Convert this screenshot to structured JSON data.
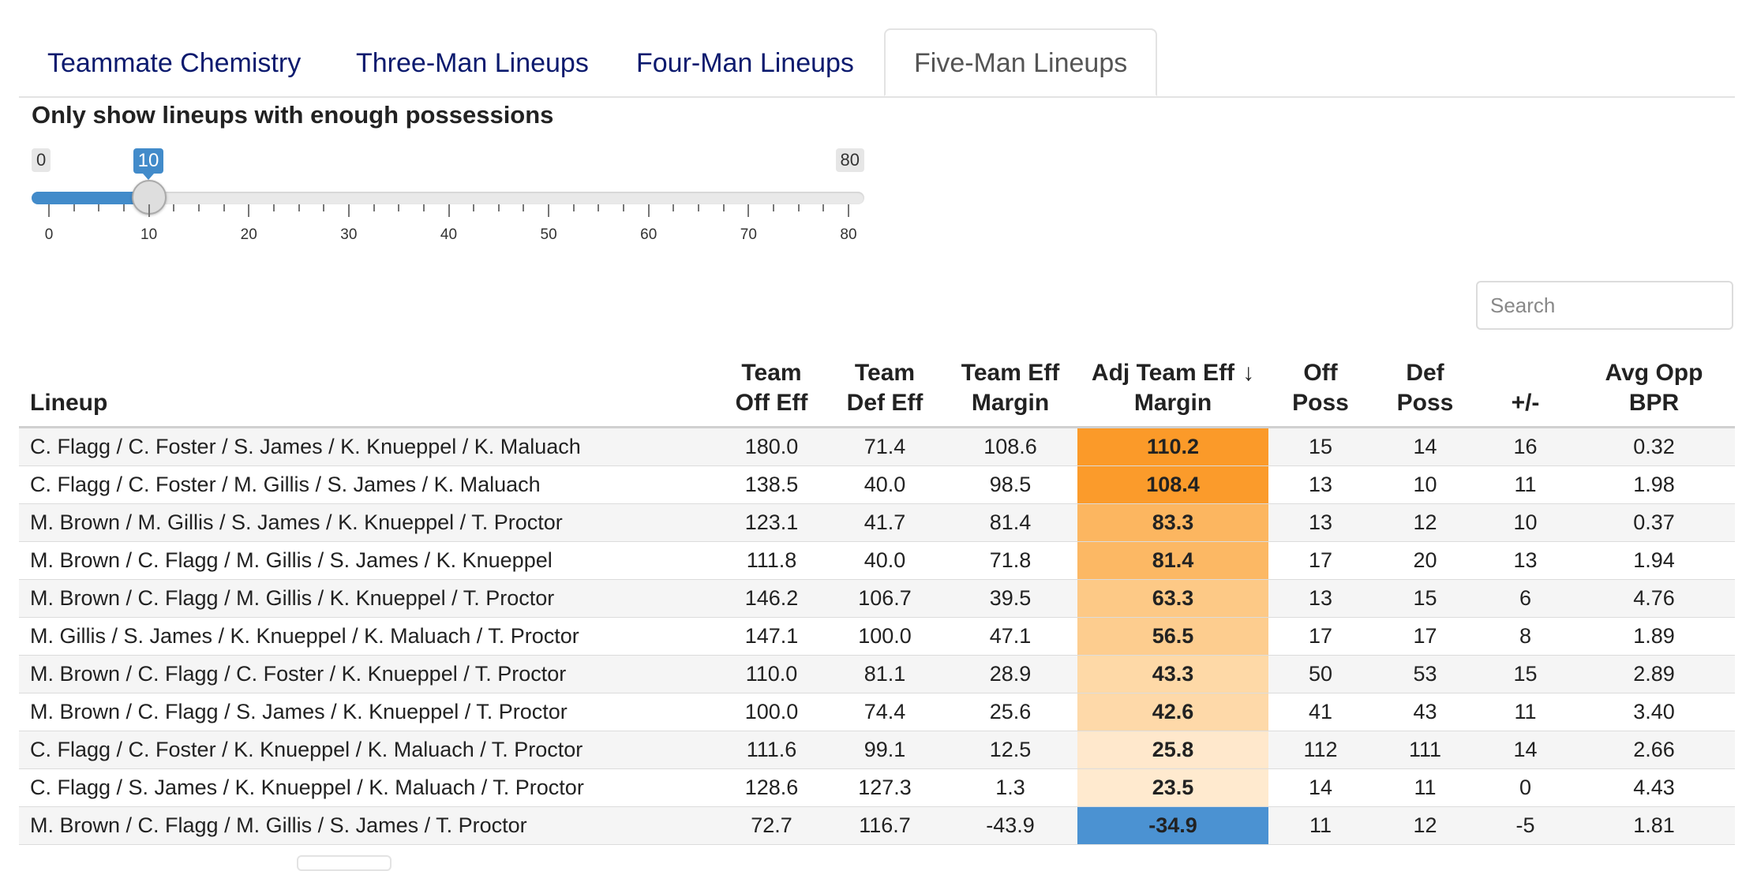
{
  "tabs": [
    {
      "label": "Teammate Chemistry",
      "active": false
    },
    {
      "label": "Three-Man Lineups",
      "active": false
    },
    {
      "label": "Four-Man Lineups",
      "active": false
    },
    {
      "label": "Five-Man Lineups",
      "active": true
    }
  ],
  "slider": {
    "label": "Only show lineups with enough possessions",
    "min": "0",
    "max": "80",
    "value": "10",
    "ticks": [
      "0",
      "10",
      "20",
      "30",
      "40",
      "50",
      "60",
      "70",
      "80"
    ]
  },
  "search": {
    "placeholder": "Search"
  },
  "table": {
    "headers": {
      "lineup": "Lineup",
      "off_eff": [
        "Team",
        "Off Eff"
      ],
      "def_eff": [
        "Team",
        "Def Eff"
      ],
      "margin": [
        "Team Eff",
        "Margin"
      ],
      "adj_margin": [
        "Adj Team Eff",
        "Margin"
      ],
      "sort_icon": "↓",
      "off_poss": [
        "Off",
        "Poss"
      ],
      "def_poss": [
        "Def",
        "Poss"
      ],
      "plus_minus": "+/-",
      "avg_opp": [
        "Avg Opp",
        "BPR"
      ]
    },
    "rows": [
      {
        "lineup": "C. Flagg / C. Foster / S. James / K. Knueppel / K. Maluach",
        "off_eff": "180.0",
        "def_eff": "71.4",
        "margin": "108.6",
        "adj_margin": "110.2",
        "off_poss": "15",
        "def_poss": "14",
        "plus_minus": "16",
        "avg_opp": "0.32",
        "adj_color": "#fb9a29"
      },
      {
        "lineup": "C. Flagg / C. Foster / M. Gillis / S. James / K. Maluach",
        "off_eff": "138.5",
        "def_eff": "40.0",
        "margin": "98.5",
        "adj_margin": "108.4",
        "off_poss": "13",
        "def_poss": "10",
        "plus_minus": "11",
        "avg_opp": "1.98",
        "adj_color": "#fb9b2b"
      },
      {
        "lineup": "M. Brown / M. Gillis / S. James / K. Knueppel / T. Proctor",
        "off_eff": "123.1",
        "def_eff": "41.7",
        "margin": "81.4",
        "adj_margin": "83.3",
        "off_poss": "13",
        "def_poss": "12",
        "plus_minus": "10",
        "avg_opp": "0.37",
        "adj_color": "#fcb660"
      },
      {
        "lineup": "M. Brown / C. Flagg / M. Gillis / S. James / K. Knueppel",
        "off_eff": "111.8",
        "def_eff": "40.0",
        "margin": "71.8",
        "adj_margin": "81.4",
        "off_poss": "17",
        "def_poss": "20",
        "plus_minus": "13",
        "avg_opp": "1.94",
        "adj_color": "#fcb864"
      },
      {
        "lineup": "M. Brown / C. Flagg / M. Gillis / K. Knueppel / T. Proctor",
        "off_eff": "146.2",
        "def_eff": "106.7",
        "margin": "39.5",
        "adj_margin": "63.3",
        "off_poss": "13",
        "def_poss": "15",
        "plus_minus": "6",
        "avg_opp": "4.76",
        "adj_color": "#fdc986"
      },
      {
        "lineup": "M. Gillis / S. James / K. Knueppel / K. Maluach / T. Proctor",
        "off_eff": "147.1",
        "def_eff": "100.0",
        "margin": "47.1",
        "adj_margin": "56.5",
        "off_poss": "17",
        "def_poss": "17",
        "plus_minus": "8",
        "avg_opp": "1.89",
        "adj_color": "#fdcd8f"
      },
      {
        "lineup": "M. Brown / C. Flagg / C. Foster / K. Knueppel / T. Proctor",
        "off_eff": "110.0",
        "def_eff": "81.1",
        "margin": "28.9",
        "adj_margin": "43.3",
        "off_poss": "50",
        "def_poss": "53",
        "plus_minus": "15",
        "avg_opp": "2.89",
        "adj_color": "#fed9a7"
      },
      {
        "lineup": "M. Brown / C. Flagg / S. James / K. Knueppel / T. Proctor",
        "off_eff": "100.0",
        "def_eff": "74.4",
        "margin": "25.6",
        "adj_margin": "42.6",
        "off_poss": "41",
        "def_poss": "43",
        "plus_minus": "11",
        "avg_opp": "3.40",
        "adj_color": "#fed9a9"
      },
      {
        "lineup": "C. Flagg / C. Foster / K. Knueppel / K. Maluach / T. Proctor",
        "off_eff": "111.6",
        "def_eff": "99.1",
        "margin": "12.5",
        "adj_margin": "25.8",
        "off_poss": "112",
        "def_poss": "111",
        "plus_minus": "14",
        "avg_opp": "2.66",
        "adj_color": "#ffe8cc"
      },
      {
        "lineup": "C. Flagg / S. James / K. Knueppel / K. Maluach / T. Proctor",
        "off_eff": "128.6",
        "def_eff": "127.3",
        "margin": "1.3",
        "adj_margin": "23.5",
        "off_poss": "14",
        "def_poss": "11",
        "plus_minus": "0",
        "avg_opp": "4.43",
        "adj_color": "#ffeacf"
      },
      {
        "lineup": "M. Brown / C. Flagg / M. Gillis / S. James / T. Proctor",
        "off_eff": "72.7",
        "def_eff": "116.7",
        "margin": "-43.9",
        "adj_margin": "-34.9",
        "off_poss": "11",
        "def_poss": "12",
        "plus_minus": "-5",
        "avg_opp": "1.81",
        "adj_color": "#4b92d2"
      }
    ]
  }
}
